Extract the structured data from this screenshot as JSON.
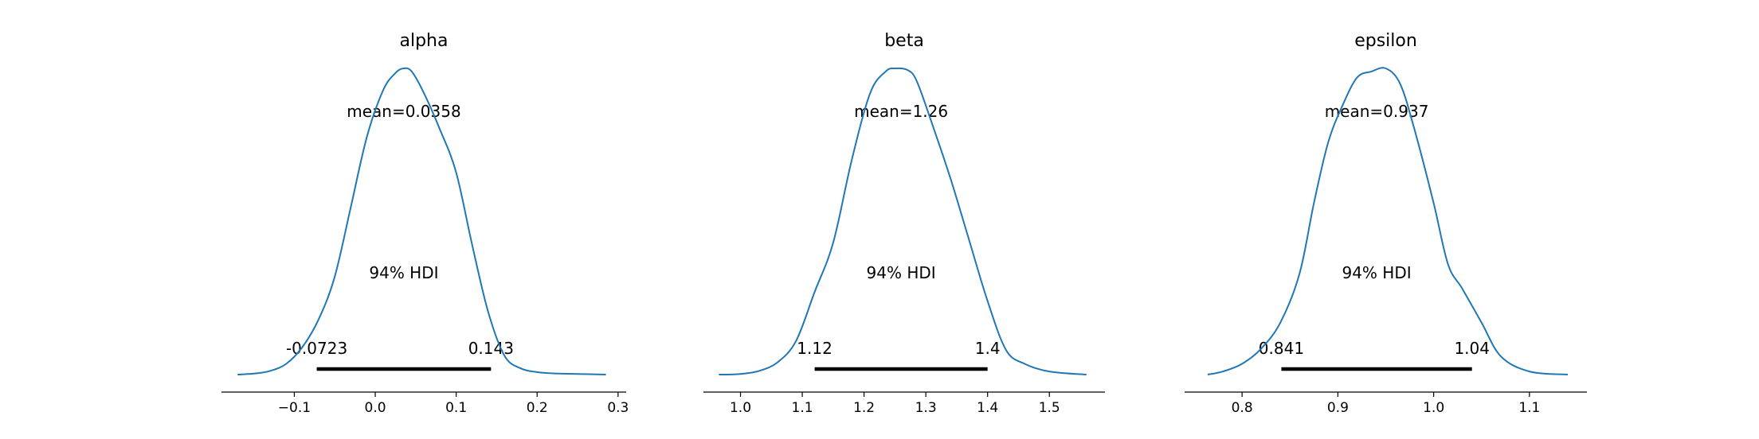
{
  "chart_data": [
    {
      "type": "area",
      "title": "alpha",
      "mean_label": "mean=0.0358",
      "hdi_label": "94% HDI",
      "hdi_low_label": "-0.0723",
      "hdi_high_label": "0.143",
      "hdi": [
        -0.0723,
        0.143
      ],
      "xlim": [
        -0.19,
        0.31
      ],
      "ticks": [
        -0.1,
        0.0,
        0.1,
        0.2,
        0.3
      ],
      "tick_labels": [
        "−0.1",
        "0.0",
        "0.1",
        "0.2",
        "0.3"
      ],
      "density": {
        "x": [
          -0.17,
          -0.15,
          -0.13,
          -0.11,
          -0.09,
          -0.07,
          -0.05,
          -0.03,
          -0.01,
          0.01,
          0.025,
          0.035,
          0.045,
          0.06,
          0.08,
          0.1,
          0.12,
          0.14,
          0.16,
          0.18,
          0.2,
          0.22,
          0.25,
          0.285
        ],
        "y": [
          0.0,
          0.003,
          0.012,
          0.035,
          0.09,
          0.18,
          0.32,
          0.55,
          0.78,
          0.93,
          0.985,
          1.0,
          0.99,
          0.92,
          0.8,
          0.66,
          0.42,
          0.2,
          0.06,
          0.02,
          0.008,
          0.004,
          0.002,
          0.0
        ]
      }
    },
    {
      "type": "area",
      "title": "beta",
      "mean_label": "mean=1.26",
      "hdi_label": "94% HDI",
      "hdi_low_label": "1.12",
      "hdi_high_label": "1.4",
      "hdi": [
        1.12,
        1.4
      ],
      "xlim": [
        0.94,
        1.59
      ],
      "ticks": [
        1.0,
        1.1,
        1.2,
        1.3,
        1.4,
        1.5
      ],
      "tick_labels": [
        "1.0",
        "1.1",
        "1.2",
        "1.3",
        "1.4",
        "1.5"
      ],
      "density": {
        "x": [
          0.965,
          1.0,
          1.03,
          1.06,
          1.09,
          1.12,
          1.15,
          1.18,
          1.21,
          1.235,
          1.25,
          1.27,
          1.285,
          1.31,
          1.34,
          1.37,
          1.4,
          1.43,
          1.46,
          1.5,
          1.56
        ],
        "y": [
          0.0,
          0.002,
          0.012,
          0.04,
          0.11,
          0.27,
          0.43,
          0.7,
          0.92,
          0.99,
          1.0,
          0.995,
          0.96,
          0.82,
          0.64,
          0.44,
          0.24,
          0.08,
          0.035,
          0.01,
          0.0
        ]
      }
    },
    {
      "type": "area",
      "title": "epsilon",
      "mean_label": "mean=0.937",
      "hdi_label": "94% HDI",
      "hdi_low_label": "0.841",
      "hdi_high_label": "1.04",
      "hdi": [
        0.841,
        1.04
      ],
      "xlim": [
        0.74,
        1.16
      ],
      "ticks": [
        0.8,
        0.9,
        1.0,
        1.1
      ],
      "tick_labels": [
        "0.8",
        "0.9",
        "1.0",
        "1.1"
      ],
      "density": {
        "x": [
          0.764,
          0.78,
          0.8,
          0.82,
          0.84,
          0.86,
          0.875,
          0.89,
          0.905,
          0.92,
          0.935,
          0.95,
          0.965,
          0.98,
          1.0,
          1.015,
          1.03,
          1.05,
          1.07,
          1.1,
          1.14
        ],
        "y": [
          0.0,
          0.01,
          0.035,
          0.085,
          0.17,
          0.33,
          0.56,
          0.76,
          0.88,
          0.97,
          0.99,
          1.0,
          0.95,
          0.8,
          0.56,
          0.36,
          0.28,
          0.17,
          0.06,
          0.01,
          0.0
        ]
      }
    }
  ],
  "colors": {
    "line": "#1f77b4",
    "hdi_bar": "#000000",
    "axis": "#000000"
  }
}
